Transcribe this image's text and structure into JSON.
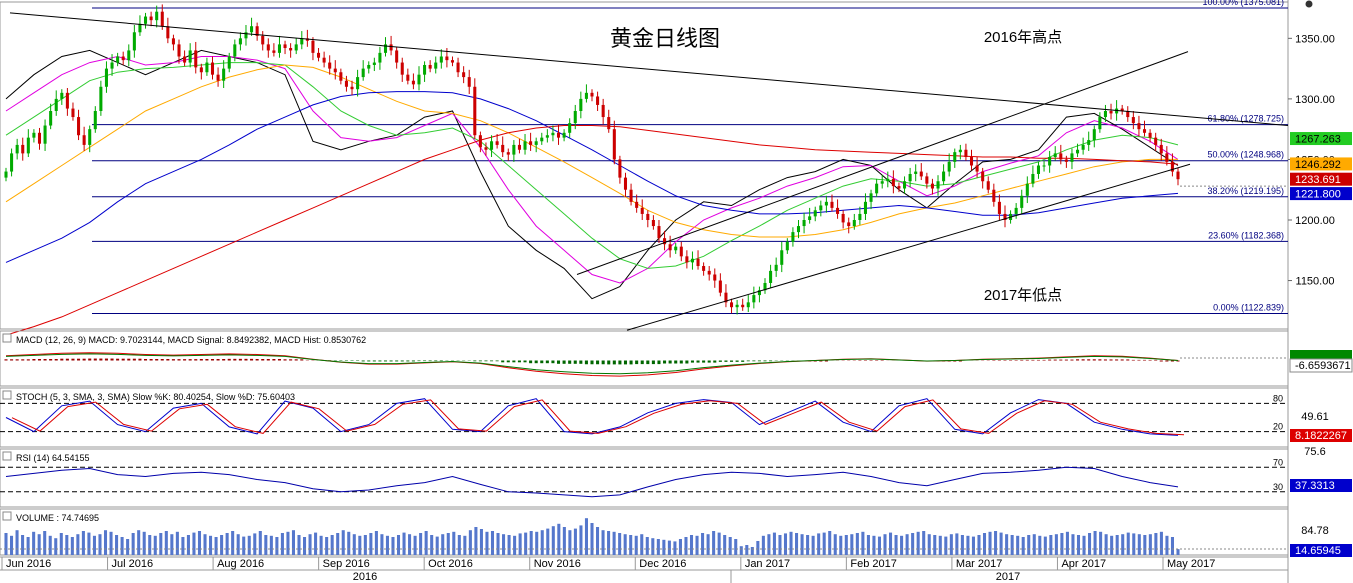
{
  "title": "黄金日线图",
  "annotations": {
    "high": "2016年高点",
    "low": "2017年低点"
  },
  "colors": {
    "up": "#00aa00",
    "down": "#cc0000",
    "ma_black": "#000000",
    "ma_magenta": "#e000e0",
    "ma_green": "#33cc33",
    "ma_orange": "#ffaa00",
    "ma_blue": "#0000cc",
    "ma_red": "#dd0000",
    "fib": "#000080",
    "channel": "#000000"
  },
  "chart_data": [
    {
      "type": "candlestick",
      "title": "黄金日线图",
      "ylim": [
        1110,
        1380
      ],
      "y_ticks": [
        1150,
        1200,
        1250,
        1300,
        1350
      ],
      "x_ticks": [
        "Jun 2016",
        "Jul 2016",
        "Aug 2016",
        "Sep 2016",
        "Oct 2016",
        "Nov 2016",
        "Dec 2016",
        "Jan 2017",
        "Feb 2017",
        "Mar 2017",
        "Apr 2017",
        "May 2017"
      ],
      "years": [
        "2016",
        "2017"
      ],
      "fib_levels": [
        {
          "label": "100.00% (1375.081)",
          "value": 1375.081
        },
        {
          "label": "61.80% (1278.725)",
          "value": 1278.725
        },
        {
          "label": "50.00% (1248.968)",
          "value": 1248.968
        },
        {
          "label": "38.20% (1219.195)",
          "value": 1219.195
        },
        {
          "label": "23.60% (1182.368)",
          "value": 1182.368
        },
        {
          "label": "0.00% (1122.839)",
          "value": 1122.839
        }
      ],
      "price_tags": [
        {
          "label": "1267.263",
          "value": 1267.263,
          "bg": "#22cc22",
          "fg": "#000000"
        },
        {
          "label": "1246.292",
          "value": 1246.292,
          "bg": "#ffaa00",
          "fg": "#000000"
        },
        {
          "label": "1233.691",
          "value": 1233.691,
          "bg": "#cc0000",
          "fg": "#ffffff"
        },
        {
          "label": "1221.800",
          "value": 1221.8,
          "bg": "#0000cc",
          "fg": "#ffffff"
        }
      ],
      "closes": [
        1240,
        1255,
        1262,
        1255,
        1268,
        1272,
        1263,
        1278,
        1290,
        1300,
        1305,
        1292,
        1285,
        1270,
        1262,
        1275,
        1290,
        1310,
        1325,
        1330,
        1335,
        1332,
        1340,
        1355,
        1362,
        1368,
        1365,
        1372,
        1360,
        1350,
        1345,
        1335,
        1330,
        1340,
        1326,
        1322,
        1330,
        1320,
        1315,
        1325,
        1335,
        1345,
        1350,
        1355,
        1360,
        1352,
        1345,
        1340,
        1338,
        1345,
        1342,
        1340,
        1345,
        1350,
        1348,
        1338,
        1334,
        1330,
        1325,
        1322,
        1315,
        1310,
        1308,
        1318,
        1325,
        1328,
        1330,
        1338,
        1345,
        1340,
        1330,
        1320,
        1315,
        1312,
        1320,
        1328,
        1325,
        1330,
        1335,
        1332,
        1330,
        1322,
        1318,
        1310,
        1270,
        1260,
        1258,
        1265,
        1262,
        1256,
        1254,
        1262,
        1258,
        1265,
        1262,
        1265,
        1268,
        1270,
        1272,
        1268,
        1272,
        1280,
        1290,
        1300,
        1305,
        1302,
        1295,
        1285,
        1275,
        1250,
        1235,
        1225,
        1215,
        1210,
        1205,
        1200,
        1195,
        1185,
        1180,
        1175,
        1178,
        1170,
        1165,
        1168,
        1162,
        1158,
        1155,
        1150,
        1140,
        1132,
        1128,
        1130,
        1128,
        1132,
        1138,
        1142,
        1148,
        1158,
        1163,
        1175,
        1182,
        1190,
        1195,
        1200,
        1203,
        1208,
        1212,
        1215,
        1210,
        1205,
        1198,
        1195,
        1200,
        1205,
        1215,
        1222,
        1230,
        1232,
        1234,
        1228,
        1226,
        1232,
        1238,
        1240,
        1236,
        1230,
        1226,
        1232,
        1240,
        1248,
        1256,
        1258,
        1252,
        1245,
        1240,
        1232,
        1225,
        1215,
        1205,
        1200,
        1205,
        1210,
        1220,
        1230,
        1238,
        1245,
        1245,
        1252,
        1255,
        1250,
        1248,
        1255,
        1258,
        1262,
        1266,
        1275,
        1285,
        1290,
        1288,
        1292,
        1290,
        1285,
        1280,
        1275,
        1272,
        1268,
        1262,
        1255,
        1248,
        1240,
        1233.7
      ],
      "series": [
        {
          "name": "",
          "values": [
            1300,
            1320,
            1335,
            1340,
            1330,
            1320,
            1330,
            1340,
            1335,
            1330,
            1320,
            1265,
            1258,
            1265,
            1270,
            1285,
            1290,
            1240,
            1195,
            1175,
            1160,
            1135,
            1145,
            1175,
            1200,
            1215,
            1212,
            1225,
            1235,
            1240,
            1250,
            1245,
            1225,
            1210,
            1230,
            1248,
            1250,
            1258,
            1285,
            1288,
            1275,
            1260,
            1245
          ]
        },
        {
          "name": "",
          "values": [
            1290,
            1305,
            1320,
            1330,
            1335,
            1328,
            1330,
            1335,
            1335,
            1332,
            1325,
            1290,
            1268,
            1265,
            1268,
            1278,
            1288,
            1260,
            1225,
            1195,
            1175,
            1155,
            1148,
            1160,
            1182,
            1200,
            1210,
            1218,
            1228,
            1235,
            1244,
            1245,
            1232,
            1220,
            1228,
            1240,
            1247,
            1253,
            1272,
            1282,
            1276,
            1265,
            1250
          ]
        },
        {
          "name": "",
          "values": [
            1270,
            1285,
            1300,
            1315,
            1322,
            1325,
            1326,
            1328,
            1330,
            1330,
            1328,
            1310,
            1290,
            1278,
            1270,
            1272,
            1276,
            1265,
            1245,
            1225,
            1205,
            1185,
            1168,
            1160,
            1162,
            1170,
            1183,
            1195,
            1208,
            1218,
            1228,
            1234,
            1232,
            1228,
            1230,
            1236,
            1242,
            1248,
            1258,
            1266,
            1270,
            1268,
            1262
          ]
        },
        {
          "name": "",
          "values": [
            1215,
            1230,
            1245,
            1260,
            1275,
            1290,
            1300,
            1310,
            1318,
            1324,
            1328,
            1326,
            1318,
            1308,
            1298,
            1290,
            1288,
            1282,
            1272,
            1260,
            1248,
            1235,
            1222,
            1208,
            1198,
            1192,
            1188,
            1186,
            1186,
            1188,
            1192,
            1198,
            1205,
            1210,
            1214,
            1220,
            1226,
            1232,
            1238,
            1244,
            1248,
            1250,
            1250
          ]
        },
        {
          "name": "",
          "values": [
            1165,
            1175,
            1185,
            1198,
            1215,
            1230,
            1240,
            1250,
            1262,
            1275,
            1285,
            1295,
            1302,
            1305,
            1306,
            1306,
            1305,
            1300,
            1292,
            1282,
            1270,
            1258,
            1245,
            1232,
            1220,
            1212,
            1208,
            1205,
            1205,
            1206,
            1208,
            1210,
            1212,
            1210,
            1207,
            1204,
            1204,
            1206,
            1210,
            1214,
            1218,
            1220,
            1222
          ]
        },
        {
          "name": "",
          "values": [
            1105,
            1112,
            1120,
            1130,
            1140,
            1150,
            1160,
            1170,
            1180,
            1190,
            1200,
            1210,
            1220,
            1230,
            1240,
            1250,
            1258,
            1266,
            1272,
            1276,
            1278,
            1278,
            1277,
            1274,
            1271,
            1268,
            1265,
            1262,
            1260,
            1258,
            1257,
            1256,
            1255,
            1254,
            1253,
            1252,
            1252,
            1251,
            1251,
            1250,
            1249,
            1248,
            1246
          ]
        }
      ]
    },
    {
      "type": "line",
      "title": "MACD (12, 26, 9) MACD: 9.7023144, MACD Signal: 8.8492382, MACD Hist: 0.8530762",
      "tag": "-6.6593671",
      "values": [
        8,
        10,
        12,
        13,
        12,
        10,
        9,
        10,
        11,
        10,
        8,
        2,
        -3,
        -6,
        -6,
        -4,
        -2,
        -5,
        -12,
        -18,
        -22,
        -25,
        -26,
        -24,
        -20,
        -14,
        -9,
        -5,
        -2,
        0,
        2,
        3,
        1,
        -1,
        0,
        2,
        3,
        4,
        6,
        8,
        7,
        4,
        0
      ]
    },
    {
      "type": "line",
      "title": "STOCH (5, 3, SMA, 3, SMA) Slow %K: 80.40254, Slow %D: 75.60403",
      "levels": [
        80,
        20
      ],
      "tick": "49.61",
      "tag": "8.1822267",
      "values": [
        50,
        20,
        75,
        85,
        35,
        20,
        70,
        80,
        30,
        15,
        85,
        70,
        20,
        35,
        80,
        90,
        25,
        20,
        75,
        90,
        20,
        15,
        30,
        60,
        80,
        88,
        82,
        35,
        60,
        85,
        40,
        20,
        75,
        90,
        25,
        15,
        60,
        88,
        80,
        40,
        25,
        15,
        12
      ]
    },
    {
      "type": "line",
      "title": "RSI (14) 64.54155",
      "levels": [
        70,
        30
      ],
      "tick": "75.6",
      "tag": "37.3313",
      "values": [
        55,
        60,
        65,
        68,
        58,
        55,
        60,
        62,
        58,
        50,
        45,
        35,
        30,
        33,
        40,
        45,
        55,
        42,
        30,
        28,
        25,
        22,
        25,
        38,
        50,
        58,
        62,
        60,
        55,
        58,
        62,
        55,
        45,
        40,
        50,
        60,
        62,
        65,
        70,
        68,
        55,
        45,
        38
      ]
    },
    {
      "type": "bar",
      "title": "VOLUME : 74.74695",
      "tick": "84.78",
      "tag": "14.65945",
      "values": [
        55,
        48,
        62,
        50,
        45,
        58,
        52,
        60,
        48,
        42,
        55,
        50,
        45,
        52,
        60,
        56,
        48,
        52,
        62,
        58,
        50,
        45,
        40,
        55,
        62,
        58,
        50,
        48,
        55,
        60,
        52,
        58,
        45,
        50,
        56,
        60,
        52,
        48,
        45,
        50,
        55,
        60,
        52,
        46,
        48,
        54,
        60,
        50,
        48,
        45,
        55,
        58,
        62,
        50,
        45,
        52,
        56,
        48,
        45,
        50,
        55,
        62,
        58,
        52,
        48,
        50,
        55,
        60,
        52,
        48,
        45,
        50,
        56,
        52,
        48,
        55,
        60,
        50,
        46,
        52,
        55,
        58,
        50,
        48,
        62,
        70,
        65,
        58,
        60,
        55,
        52,
        50,
        48,
        54,
        56,
        60,
        58,
        62,
        66,
        72,
        78,
        70,
        62,
        66,
        74,
        92,
        80,
        70,
        62,
        60,
        58,
        55,
        52,
        50,
        48,
        52,
        45,
        42,
        40,
        38,
        36,
        34,
        40,
        45,
        50,
        48,
        55,
        52,
        60,
        56,
        50,
        45,
        40,
        22,
        25,
        20,
        35,
        48,
        52,
        56,
        50,
        54,
        58,
        55,
        52,
        50,
        48,
        54,
        56,
        60,
        52,
        48,
        50,
        52,
        55,
        58,
        50,
        48,
        46,
        52,
        56,
        50,
        48,
        52,
        55,
        58,
        60,
        52,
        50,
        48,
        46,
        52,
        54,
        50,
        48,
        46,
        50,
        55,
        58,
        60,
        56,
        52,
        50,
        48,
        45,
        50,
        52,
        48,
        46,
        50,
        52,
        55,
        58,
        52,
        50,
        48,
        55,
        60,
        58,
        52,
        48,
        50,
        52,
        56,
        54,
        52,
        50,
        52,
        55,
        58,
        48,
        45,
        14.66
      ]
    }
  ]
}
